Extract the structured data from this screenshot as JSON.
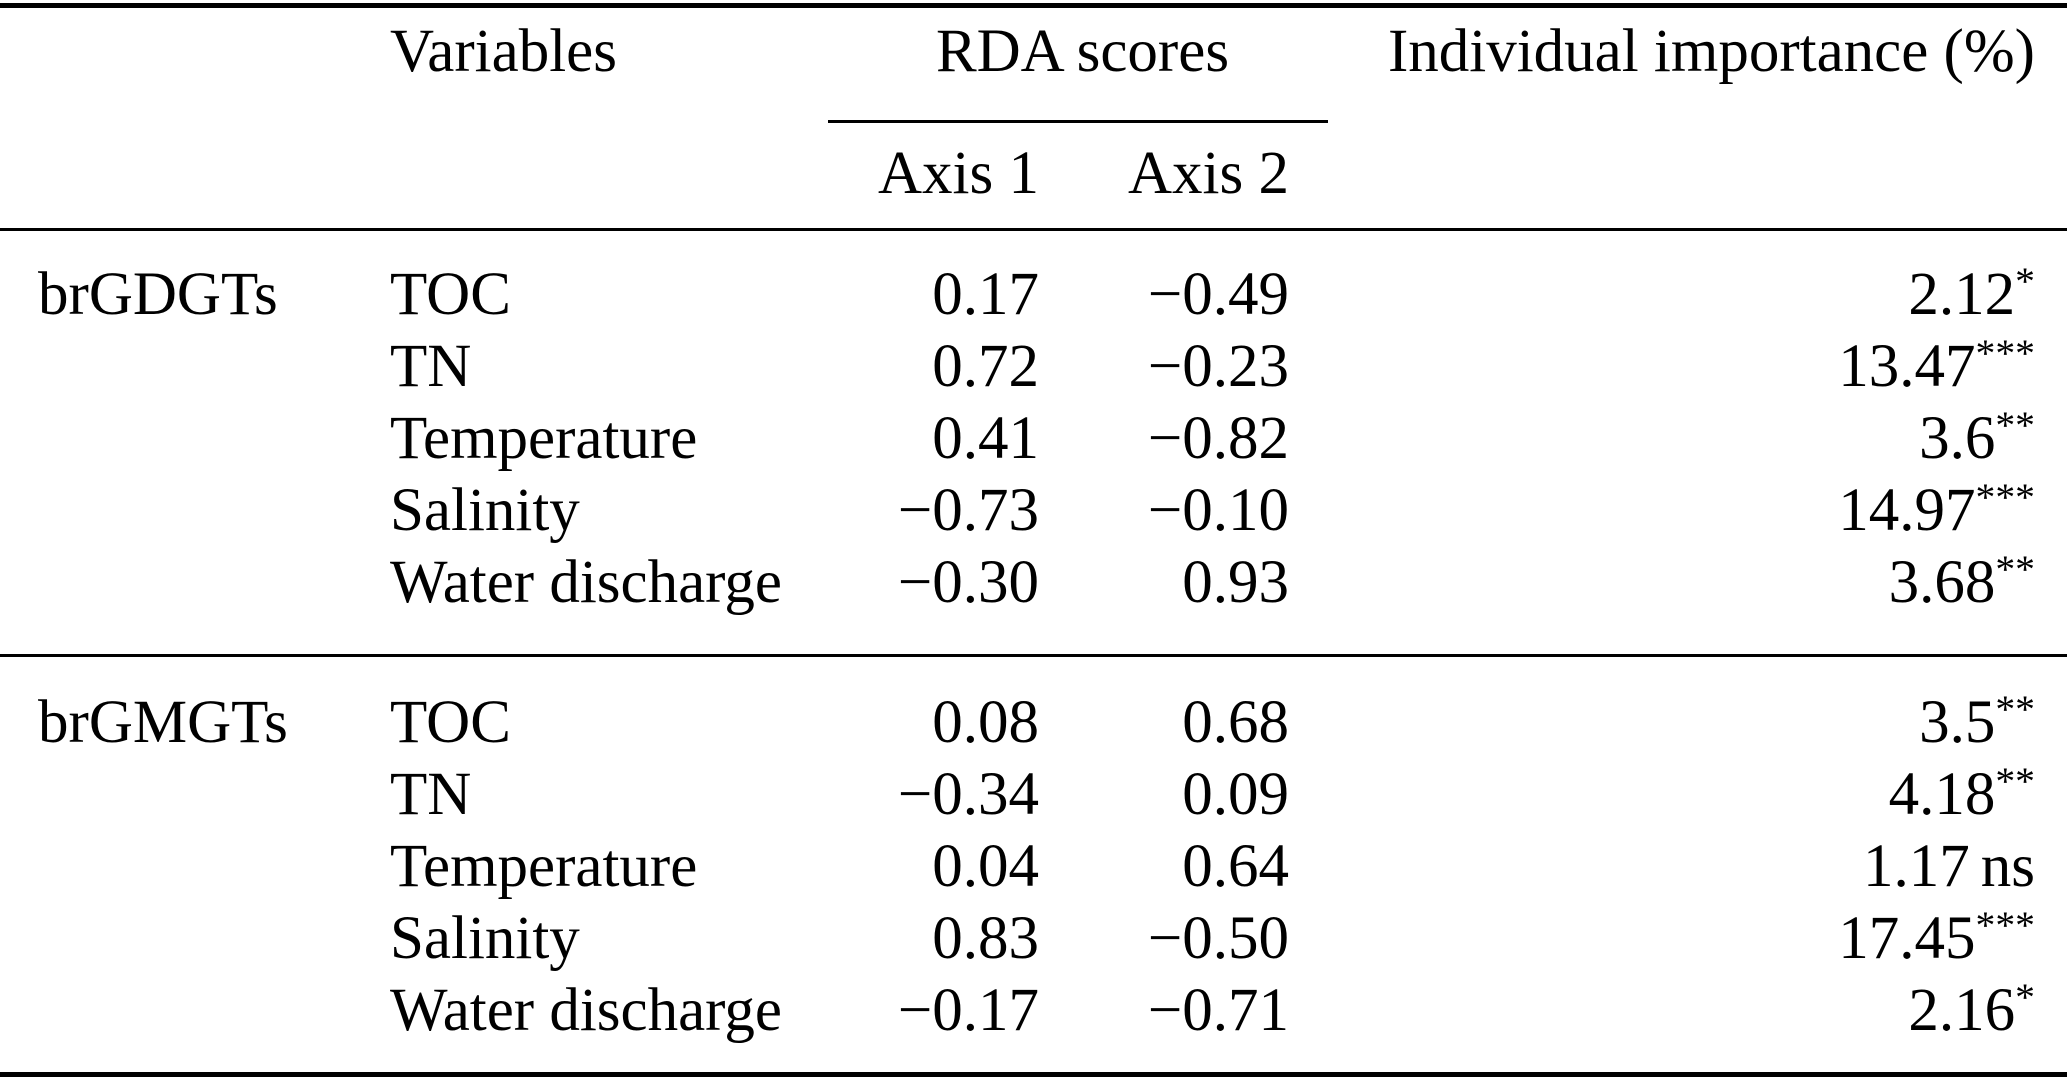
{
  "colors": {
    "ink": "#000000",
    "background": "#ffffff"
  },
  "table": {
    "header": {
      "variables_label": "Variables",
      "rda_scores_label": "RDA scores",
      "axis1_label": "Axis 1",
      "axis2_label": "Axis 2",
      "importance_label": "Individual importance (%)"
    },
    "groups": [
      {
        "name": "brGDGTs",
        "rows": [
          {
            "variable": "TOC",
            "axis1": "0.17",
            "axis2": "−0.49",
            "importance": "2.12",
            "significance": "*"
          },
          {
            "variable": "TN",
            "axis1": "0.72",
            "axis2": "−0.23",
            "importance": "13.47",
            "significance": "***"
          },
          {
            "variable": "Temperature",
            "axis1": "0.41",
            "axis2": "−0.82",
            "importance": "3.6",
            "significance": "**"
          },
          {
            "variable": "Salinity",
            "axis1": "−0.73",
            "axis2": "−0.10",
            "importance": "14.97",
            "significance": "***"
          },
          {
            "variable": "Water discharge",
            "axis1": "−0.30",
            "axis2": "0.93",
            "importance": "3.68",
            "significance": "**"
          }
        ]
      },
      {
        "name": "brGMGTs",
        "rows": [
          {
            "variable": "TOC",
            "axis1": "0.08",
            "axis2": "0.68",
            "importance": "3.5",
            "significance": "**"
          },
          {
            "variable": "TN",
            "axis1": "−0.34",
            "axis2": "0.09",
            "importance": "4.18",
            "significance": "**"
          },
          {
            "variable": "Temperature",
            "axis1": "0.04",
            "axis2": "0.64",
            "importance": "1.17",
            "significance": "ns"
          },
          {
            "variable": "Salinity",
            "axis1": "0.83",
            "axis2": "−0.50",
            "importance": "17.45",
            "significance": "***"
          },
          {
            "variable": "Water discharge",
            "axis1": "−0.17",
            "axis2": "−0.71",
            "importance": "2.16",
            "significance": "*"
          }
        ]
      }
    ]
  }
}
